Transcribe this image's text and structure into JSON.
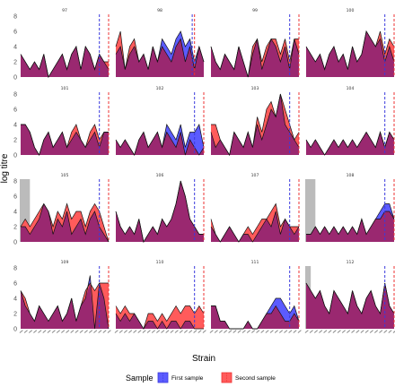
{
  "chart_data": {
    "type": "area",
    "xlabel": "Strain",
    "ylabel": "log titre",
    "yticks": [
      0,
      2,
      4,
      6,
      8
    ],
    "ylim": [
      0,
      8
    ],
    "grid": false,
    "legend": {
      "title": "Sample",
      "position": "bottom",
      "entries": [
        {
          "name": "First sample",
          "color": "#5b5bff"
        },
        {
          "name": "Second sample",
          "color": "#ff5b5b"
        }
      ]
    },
    "colors": {
      "first": "#5b5bff",
      "second": "#ff5b5b",
      "overlap": "#9a2870",
      "shade": "#bbbbbb",
      "first_line": "#3b3bdd",
      "second_line": "#ee3333"
    },
    "panels": [
      {
        "id": "97",
        "first": [
          3,
          2,
          1,
          2,
          1,
          3,
          0,
          1,
          2,
          3,
          1,
          3,
          4,
          1,
          4,
          3,
          1,
          3,
          2,
          1
        ],
        "second": [
          3,
          2,
          1,
          2,
          1,
          3,
          0,
          1,
          2,
          3,
          1,
          3,
          4,
          1,
          4,
          3,
          1,
          3,
          2,
          2
        ],
        "vline_first": 17,
        "vline_second": 19,
        "shade_to": 0
      },
      {
        "id": "98",
        "first": [
          3,
          4,
          1,
          3,
          4,
          2,
          3,
          1,
          4,
          2,
          5,
          4,
          3,
          5,
          6,
          4,
          5,
          2,
          4,
          2
        ],
        "second": [
          4,
          6,
          1,
          4,
          5,
          2,
          3,
          1,
          4,
          2,
          4,
          3,
          2,
          4,
          5,
          2,
          4,
          1,
          4,
          2
        ],
        "vline_first": 16.5,
        "vline_second": 17,
        "shade_to": 0
      },
      {
        "id": "99",
        "first": [
          4,
          2,
          1,
          3,
          2,
          1,
          4,
          2,
          0,
          3,
          5,
          1,
          3,
          5,
          4,
          2,
          4,
          1,
          5,
          3
        ],
        "second": [
          4,
          2,
          1,
          3,
          2,
          1,
          4,
          2,
          0,
          4,
          5,
          2,
          4,
          5,
          5,
          3,
          5,
          2,
          5,
          5
        ],
        "vline_first": 17,
        "vline_second": 19,
        "shade_to": 0
      },
      {
        "id": "100",
        "first": [
          4,
          3,
          2,
          3,
          1,
          3,
          4,
          2,
          3,
          1,
          4,
          2,
          3,
          6,
          5,
          4,
          5,
          2,
          4,
          2
        ],
        "second": [
          4,
          3,
          2,
          3,
          1,
          3,
          4,
          2,
          3,
          1,
          4,
          2,
          3,
          6,
          5,
          4,
          6,
          3,
          5,
          4
        ],
        "vline_first": 17,
        "vline_second": 19,
        "shade_to": 0
      },
      {
        "id": "101",
        "first": [
          4,
          4,
          3,
          1,
          0,
          2,
          3,
          1,
          2,
          3,
          1,
          2,
          3,
          2,
          1,
          2,
          3,
          1,
          3,
          3
        ],
        "second": [
          4,
          4,
          3,
          1,
          0,
          2,
          3,
          1,
          2,
          3,
          1,
          3,
          4,
          2,
          1,
          3,
          4,
          2,
          3,
          3
        ],
        "vline_first": 17,
        "vline_second": 19,
        "shade_to": 0
      },
      {
        "id": "102",
        "first": [
          2,
          1,
          2,
          1,
          0,
          2,
          3,
          1,
          2,
          3,
          1,
          4,
          3,
          2,
          4,
          1,
          3,
          3,
          4,
          1
        ],
        "second": [
          2,
          1,
          2,
          1,
          0,
          2,
          3,
          1,
          2,
          3,
          1,
          3,
          2,
          1,
          3,
          0,
          2,
          1,
          0,
          1
        ],
        "vline_first": 17,
        "vline_second": 19,
        "shade_to": 0
      },
      {
        "id": "103",
        "first": [
          3,
          1,
          2,
          1,
          0,
          3,
          2,
          1,
          3,
          1,
          4,
          2,
          4,
          6,
          5,
          8,
          4,
          3,
          2,
          1
        ],
        "second": [
          4,
          4,
          2,
          1,
          0,
          3,
          2,
          1,
          3,
          1,
          5,
          3,
          6,
          7,
          5,
          8,
          6,
          4,
          2,
          3
        ],
        "vline_first": 17,
        "vline_second": 19,
        "shade_to": 0
      },
      {
        "id": "104",
        "first": [
          2,
          1,
          2,
          1,
          0,
          1,
          2,
          1,
          2,
          1,
          2,
          1,
          2,
          3,
          2,
          1,
          3,
          1,
          3,
          2
        ],
        "second": [
          2,
          1,
          2,
          1,
          0,
          1,
          2,
          1,
          2,
          1,
          2,
          1,
          2,
          3,
          2,
          1,
          3,
          1,
          3,
          2
        ],
        "vline_first": 17,
        "vline_second": 19,
        "shade_to": 0
      },
      {
        "id": "105",
        "first": [
          2,
          2,
          1,
          2,
          3,
          5,
          4,
          1,
          3,
          2,
          4,
          1,
          2,
          3,
          1,
          3,
          4,
          2,
          1,
          0
        ],
        "second": [
          2,
          3,
          2,
          3,
          4,
          5,
          4,
          2,
          4,
          3,
          5,
          3,
          4,
          4,
          2,
          4,
          5,
          4,
          2,
          0
        ],
        "vline_first": 17,
        "vline_second": 19,
        "shade_to": 2
      },
      {
        "id": "106",
        "first": [
          4,
          2,
          1,
          2,
          1,
          3,
          0,
          1,
          2,
          1,
          3,
          2,
          3,
          5,
          8,
          6,
          3,
          2,
          1,
          1
        ],
        "second": [
          4,
          2,
          1,
          2,
          1,
          3,
          0,
          1,
          2,
          1,
          3,
          2,
          3,
          5,
          8,
          6,
          3,
          2,
          1,
          1
        ],
        "vline_first": 17,
        "vline_second": 19,
        "shade_to": 0
      },
      {
        "id": "107",
        "first": [
          2,
          1,
          0,
          1,
          2,
          1,
          0,
          1,
          1,
          0,
          1,
          2,
          3,
          2,
          4,
          1,
          3,
          2,
          1,
          2
        ],
        "second": [
          3,
          1,
          0,
          1,
          2,
          1,
          0,
          1,
          2,
          1,
          2,
          3,
          3,
          4,
          5,
          2,
          3,
          2,
          2,
          2
        ],
        "vline_first": 17,
        "vline_second": 19,
        "shade_to": 0
      },
      {
        "id": "108",
        "first": [
          1,
          1,
          2,
          1,
          2,
          1,
          2,
          1,
          2,
          1,
          2,
          1,
          3,
          1,
          2,
          3,
          4,
          5,
          5,
          3
        ],
        "second": [
          1,
          1,
          2,
          1,
          2,
          1,
          2,
          1,
          2,
          1,
          2,
          1,
          3,
          1,
          2,
          3,
          3,
          4,
          4,
          3
        ],
        "vline_first": 17,
        "vline_second": 19,
        "shade_to": 2
      },
      {
        "id": "109",
        "first": [
          5,
          3,
          2,
          1,
          3,
          2,
          1,
          2,
          3,
          1,
          2,
          4,
          1,
          3,
          4,
          7,
          0,
          6,
          4,
          0
        ],
        "second": [
          5,
          4,
          2,
          1,
          3,
          2,
          1,
          2,
          3,
          1,
          2,
          4,
          1,
          3,
          5,
          6,
          5,
          6,
          6,
          6
        ],
        "vline_first": 17,
        "vline_second": 19,
        "shade_to": 0
      },
      {
        "id": "110",
        "first": [
          2,
          1,
          2,
          1,
          2,
          1,
          0,
          1,
          1,
          0,
          1,
          0,
          1,
          1,
          0,
          1,
          1,
          0,
          0,
          0
        ],
        "second": [
          3,
          2,
          3,
          2,
          2,
          1,
          0,
          2,
          2,
          1,
          2,
          1,
          2,
          3,
          2,
          3,
          3,
          2,
          3,
          2
        ],
        "vline_first": 17,
        "vline_second": 19,
        "shade_to": 0
      },
      {
        "id": "111",
        "first": [
          3,
          3,
          1,
          1,
          0,
          0,
          0,
          0,
          1,
          0,
          0,
          1,
          2,
          3,
          4,
          4,
          3,
          2,
          3,
          1
        ],
        "second": [
          3,
          3,
          1,
          1,
          0,
          0,
          0,
          0,
          1,
          0,
          0,
          1,
          2,
          2,
          3,
          2,
          1,
          1,
          2,
          1
        ],
        "vline_first": 17,
        "vline_second": 19,
        "shade_to": 0
      },
      {
        "id": "112",
        "first": [
          6,
          5,
          4,
          5,
          3,
          2,
          5,
          4,
          3,
          2,
          5,
          3,
          2,
          4,
          5,
          3,
          2,
          6,
          3,
          2
        ],
        "second": [
          6,
          5,
          4,
          5,
          3,
          2,
          5,
          4,
          3,
          2,
          5,
          3,
          2,
          4,
          5,
          3,
          2,
          6,
          3,
          2
        ],
        "vline_first": 17,
        "vline_second": 19,
        "shade_to": 1
      }
    ]
  }
}
